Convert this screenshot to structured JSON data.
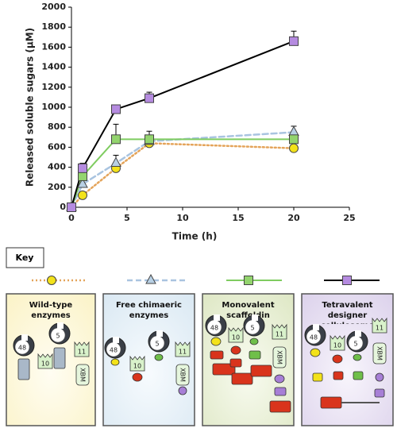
{
  "chart_data": {
    "type": "line",
    "x_label": "Time (h)",
    "y_label": "Released soluble sugars (μM)",
    "x": [
      0,
      1,
      4,
      7,
      20
    ],
    "xlim": [
      0,
      25
    ],
    "xticks": [
      0,
      5,
      10,
      15,
      20,
      25
    ],
    "ylim": [
      0,
      2000
    ],
    "yticks": [
      0,
      200,
      400,
      600,
      800,
      1000,
      1200,
      1400,
      1600,
      1800,
      2000
    ],
    "series": [
      {
        "name": "Wild-type enzymes",
        "color": "#f3e21a",
        "line_color": "#e4a45a",
        "line_style": "dotted",
        "marker": "circle",
        "values": [
          0,
          120,
          390,
          640,
          590
        ],
        "errors": [
          0,
          20,
          40,
          30,
          30
        ]
      },
      {
        "name": "Free chimaeric enzymes",
        "color": "#b8d0e4",
        "line_color": "#a9c4e0",
        "line_style": "dashed",
        "marker": "triangle",
        "values": [
          0,
          230,
          440,
          660,
          750
        ],
        "errors": [
          0,
          40,
          80,
          60,
          60
        ]
      },
      {
        "name": "Monovalent scaffoldin",
        "color": "#93d46e",
        "line_color": "#7fcc60",
        "line_style": "solid",
        "marker": "square",
        "values": [
          0,
          310,
          680,
          680,
          680
        ],
        "errors": [
          0,
          30,
          150,
          80,
          40
        ]
      },
      {
        "name": "Tetravalent designer cellulosome",
        "color": "#b58be0",
        "line_color": "#000000",
        "line_style": "solid",
        "marker": "square",
        "values": [
          0,
          390,
          980,
          1090,
          1660
        ],
        "errors": [
          0,
          50,
          20,
          60,
          100
        ]
      }
    ]
  },
  "key": {
    "title": "Key"
  },
  "panels": [
    {
      "modules": [
        "48",
        "5",
        "10",
        "11",
        "XBM"
      ]
    },
    {
      "modules": [
        "48",
        "10",
        "5",
        "11",
        "XBM"
      ]
    },
    {
      "modules": [
        "48",
        "10",
        "5",
        "11",
        "XBM"
      ]
    },
    {
      "modules": [
        "48",
        "10",
        "5",
        "11",
        "XBM"
      ]
    }
  ]
}
